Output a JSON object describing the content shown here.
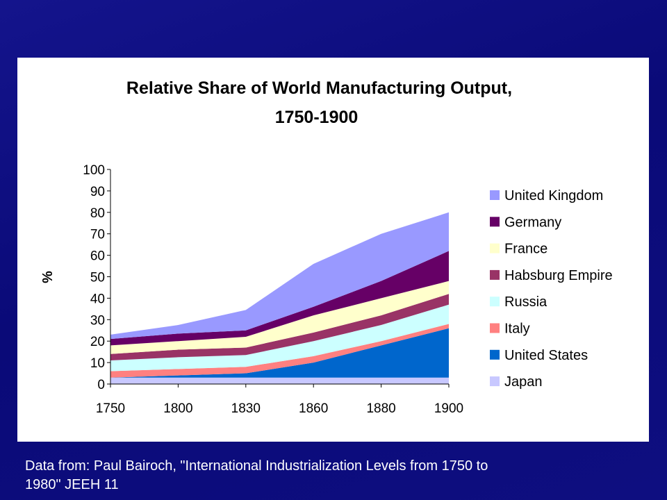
{
  "chart_data": {
    "type": "area",
    "stacked": true,
    "title": "Relative Share of World Manufacturing Output,",
    "title_line2": "1750-1900",
    "xlabel": "",
    "ylabel": "%",
    "categories": [
      "1750",
      "1800",
      "1830",
      "1860",
      "1880",
      "1900"
    ],
    "ylim": [
      0,
      100
    ],
    "yticks": [
      "0",
      "10",
      "20",
      "30",
      "40",
      "50",
      "60",
      "70",
      "80",
      "90",
      "100"
    ],
    "grid": false,
    "legend_position": "right",
    "series": [
      {
        "name": "Japan",
        "color": "#c8c8ff",
        "values": [
          3,
          3,
          3,
          3,
          3,
          3
        ]
      },
      {
        "name": "United States",
        "color": "#0066cc",
        "values": [
          0,
          1,
          2,
          7,
          15,
          23
        ]
      },
      {
        "name": "Italy",
        "color": "#ff8080",
        "values": [
          3,
          3,
          3,
          3,
          2,
          2
        ]
      },
      {
        "name": "Russia",
        "color": "#ccffff",
        "values": [
          5,
          5.5,
          5.5,
          7,
          7.5,
          9
        ]
      },
      {
        "name": "Habsburg Empire",
        "color": "#993366",
        "values": [
          3,
          3.5,
          3.5,
          4,
          4.5,
          5
        ]
      },
      {
        "name": "France",
        "color": "#ffffcc",
        "values": [
          4,
          4,
          5,
          8,
          8,
          6
        ]
      },
      {
        "name": "Germany",
        "color": "#660066",
        "values": [
          3,
          3.5,
          3,
          4,
          8,
          14
        ]
      },
      {
        "name": "United Kingdom",
        "color": "#9999ff",
        "values": [
          2,
          4,
          9.5,
          20,
          22,
          18
        ]
      }
    ]
  },
  "caption": {
    "line1": "Data from: Paul Bairoch, \"International Industrialization Levels from 1750 to",
    "line2": "1980\" JEEH 11"
  }
}
